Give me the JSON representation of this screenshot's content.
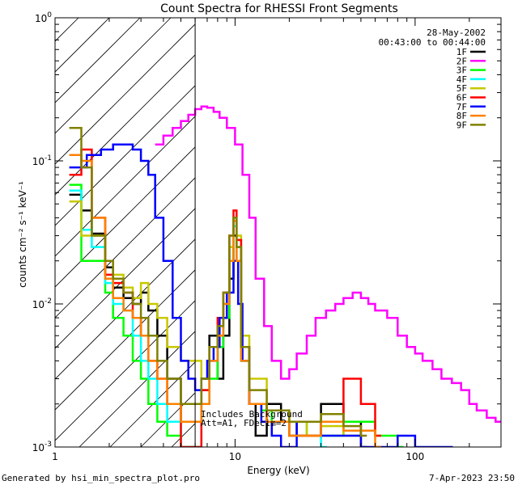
{
  "chart_data": {
    "type": "line",
    "title": "Count Spectra for RHESSI Front Segments",
    "xlabel": "Energy (keV)",
    "ylabel": "counts cm⁻² s⁻¹ keV⁻¹",
    "xscale": "log",
    "yscale": "log",
    "xlim": [
      1,
      300
    ],
    "ylim": [
      0.001,
      1
    ],
    "x_ticks": [
      {
        "value": 1,
        "label": "1"
      },
      {
        "value": 10,
        "label": "10"
      },
      {
        "value": 100,
        "label": "100"
      }
    ],
    "y_ticks": [
      {
        "value": 1,
        "base": "10",
        "exp": "0"
      },
      {
        "value": 0.1,
        "base": "10",
        "exp": "-1"
      },
      {
        "value": 0.01,
        "base": "10",
        "exp": "-2"
      },
      {
        "value": 0.001,
        "base": "10",
        "exp": "-3"
      }
    ],
    "date": "28-May-2002",
    "time_range": "00:43:00 to 00:44:00",
    "attenuator_region": {
      "x_max": 6
    },
    "annotation_lines": [
      "Includes Background",
      "Att=A1, FDecim=2"
    ],
    "legend_position": "top-right",
    "series": [
      {
        "name": "1F",
        "color": "#000000",
        "x": [
          1.2,
          1.4,
          1.6,
          1.9,
          2.1,
          2.4,
          2.7,
          3.0,
          3.3,
          3.7,
          4.2,
          5.0,
          6.5,
          7.2,
          8.0,
          8.6,
          9.3,
          9.8,
          10.2,
          10.8,
          12,
          13,
          15,
          18,
          22,
          30,
          40,
          50
        ],
        "y": [
          0.058,
          0.045,
          0.031,
          0.018,
          0.013,
          0.011,
          0.01,
          0.012,
          0.009,
          0.006,
          0.003,
          0.0015,
          0.0025,
          0.006,
          0.003,
          0.006,
          0.015,
          0.03,
          0.02,
          0.005,
          0.002,
          0.0012,
          0.002,
          0.0015,
          0.0012,
          0.002,
          0.0015,
          0.001
        ]
      },
      {
        "name": "2F",
        "color": "#ff00ff",
        "x": [
          3.6,
          4.0,
          4.5,
          5.0,
          5.5,
          6.0,
          6.5,
          7.0,
          7.6,
          8.2,
          9.0,
          10.0,
          11.0,
          12.0,
          13.0,
          14.5,
          16,
          18,
          20,
          22,
          25,
          28,
          32,
          36,
          40,
          45,
          50,
          55,
          60,
          70,
          80,
          90,
          100,
          110,
          125,
          140,
          160,
          180,
          200,
          220,
          250,
          280
        ],
        "y": [
          0.13,
          0.15,
          0.17,
          0.19,
          0.21,
          0.23,
          0.24,
          0.235,
          0.22,
          0.2,
          0.17,
          0.13,
          0.08,
          0.04,
          0.015,
          0.007,
          0.004,
          0.003,
          0.0035,
          0.0045,
          0.006,
          0.008,
          0.009,
          0.01,
          0.011,
          0.012,
          0.011,
          0.01,
          0.009,
          0.008,
          0.006,
          0.005,
          0.0045,
          0.004,
          0.0035,
          0.003,
          0.0028,
          0.0025,
          0.002,
          0.0018,
          0.0016,
          0.0015
        ]
      },
      {
        "name": "3F",
        "color": "#00ff00",
        "x": [
          1.2,
          1.4,
          1.6,
          1.9,
          2.1,
          2.4,
          2.7,
          3.0,
          3.3,
          3.7,
          4.2,
          5.0,
          6.5,
          7.2,
          8.0,
          8.6,
          9.3,
          9.8,
          10.2,
          10.8,
          12,
          14,
          16,
          20,
          25,
          30,
          40,
          60,
          80
        ],
        "y": [
          0.068,
          0.02,
          0.02,
          0.012,
          0.008,
          0.006,
          0.004,
          0.003,
          0.002,
          0.0015,
          0.0012,
          0.001,
          0.002,
          0.003,
          0.005,
          0.008,
          0.02,
          0.04,
          0.025,
          0.004,
          0.002,
          0.0018,
          0.0015,
          0.0012,
          0.0015,
          0.0012,
          0.0015,
          0.0012,
          0.001
        ]
      },
      {
        "name": "4F",
        "color": "#00ffff",
        "x": [
          1.2,
          1.4,
          1.6,
          1.9,
          2.1,
          2.4,
          2.7,
          3.0,
          3.3,
          3.7,
          4.2,
          5.0,
          6.5,
          7.2,
          8.0,
          8.6,
          9.3,
          9.8,
          10.2,
          10.8,
          12,
          15,
          20,
          30
        ],
        "y": [
          0.062,
          0.033,
          0.025,
          0.014,
          0.01,
          0.009,
          0.006,
          0.004,
          0.003,
          0.002,
          0.0015,
          0.001,
          0.002,
          0.004,
          0.006,
          0.01,
          0.025,
          0.035,
          0.02,
          0.004,
          0.002,
          0.0015,
          0.0012,
          0.001
        ]
      },
      {
        "name": "5F",
        "color": "#c8c800",
        "x": [
          1.2,
          1.4,
          1.6,
          1.9,
          2.1,
          2.4,
          2.7,
          3.0,
          3.3,
          3.7,
          4.2,
          5.0,
          6.5,
          7.2,
          8.0,
          8.6,
          9.3,
          9.8,
          10.2,
          10.8,
          12,
          15,
          20,
          25,
          30,
          40,
          50
        ],
        "y": [
          0.052,
          0.03,
          0.03,
          0.02,
          0.016,
          0.013,
          0.011,
          0.014,
          0.01,
          0.008,
          0.005,
          0.004,
          0.003,
          0.005,
          0.008,
          0.012,
          0.025,
          0.04,
          0.03,
          0.006,
          0.003,
          0.0018,
          0.0015,
          0.0012,
          0.0014,
          0.0012,
          0.001
        ]
      },
      {
        "name": "6F",
        "color": "#ff0000",
        "x": [
          1.2,
          1.4,
          1.6,
          1.9,
          2.1,
          2.4,
          2.7,
          3.0,
          3.3,
          3.7,
          4.2,
          5.0,
          6.5,
          7.2,
          8.0,
          8.6,
          9.3,
          9.8,
          10.2,
          10.8,
          12,
          15,
          20,
          30,
          40,
          50,
          60
        ],
        "y": [
          0.08,
          0.12,
          0.04,
          0.016,
          0.014,
          0.012,
          0.008,
          0.006,
          0.004,
          0.003,
          0.002,
          0.001,
          0.0025,
          0.005,
          0.008,
          0.012,
          0.03,
          0.045,
          0.028,
          0.005,
          0.002,
          0.0015,
          0.0012,
          0.0015,
          0.003,
          0.002,
          0.0012
        ]
      },
      {
        "name": "7F",
        "color": "#0000ff",
        "x": [
          1.2,
          1.5,
          1.8,
          2.1,
          2.4,
          2.7,
          3.0,
          3.3,
          3.6,
          4.0,
          4.5,
          5.0,
          5.5,
          6.0,
          6.5,
          7.0,
          7.6,
          8.2,
          9.0,
          9.8,
          10.4,
          11.0,
          12,
          14,
          16,
          18,
          22,
          30,
          50,
          80,
          100,
          150
        ],
        "y": [
          0.09,
          0.11,
          0.12,
          0.13,
          0.13,
          0.12,
          0.1,
          0.08,
          0.04,
          0.02,
          0.008,
          0.004,
          0.003,
          0.0025,
          0.003,
          0.004,
          0.005,
          0.008,
          0.012,
          0.02,
          0.01,
          0.004,
          0.002,
          0.0015,
          0.0012,
          0.001,
          0.0015,
          0.0012,
          0.001,
          0.0012,
          0.001,
          0.001
        ]
      },
      {
        "name": "8F",
        "color": "#ff8000",
        "x": [
          1.2,
          1.4,
          1.6,
          1.9,
          2.1,
          2.4,
          2.7,
          3.0,
          3.3,
          3.7,
          4.2,
          5.0,
          6.5,
          7.2,
          8.0,
          8.6,
          9.3,
          9.8,
          10.2,
          10.8,
          12,
          15,
          20,
          30,
          40,
          60
        ],
        "y": [
          0.11,
          0.1,
          0.04,
          0.015,
          0.011,
          0.009,
          0.008,
          0.006,
          0.004,
          0.003,
          0.002,
          0.0015,
          0.002,
          0.004,
          0.006,
          0.01,
          0.02,
          0.038,
          0.02,
          0.004,
          0.002,
          0.0015,
          0.0012,
          0.0015,
          0.0013,
          0.001
        ]
      },
      {
        "name": "9F",
        "color": "#808000",
        "x": [
          1.2,
          1.4,
          1.6,
          1.9,
          2.1,
          2.4,
          2.7,
          3.0,
          3.3,
          3.7,
          4.2,
          5.0,
          6.5,
          7.2,
          8.0,
          8.6,
          9.3,
          9.8,
          10.2,
          10.8,
          12,
          15,
          20,
          30,
          40,
          50
        ],
        "y": [
          0.17,
          0.09,
          0.03,
          0.02,
          0.015,
          0.012,
          0.01,
          0.008,
          0.006,
          0.004,
          0.003,
          0.002,
          0.003,
          0.005,
          0.007,
          0.012,
          0.03,
          0.04,
          0.025,
          0.005,
          0.0025,
          0.0018,
          0.0015,
          0.0017,
          0.0014,
          0.0012
        ]
      }
    ]
  },
  "footer": {
    "generated_by": "Generated by hsi_min_spectra_plot.pro",
    "timestamp": "7-Apr-2023 23:50"
  }
}
